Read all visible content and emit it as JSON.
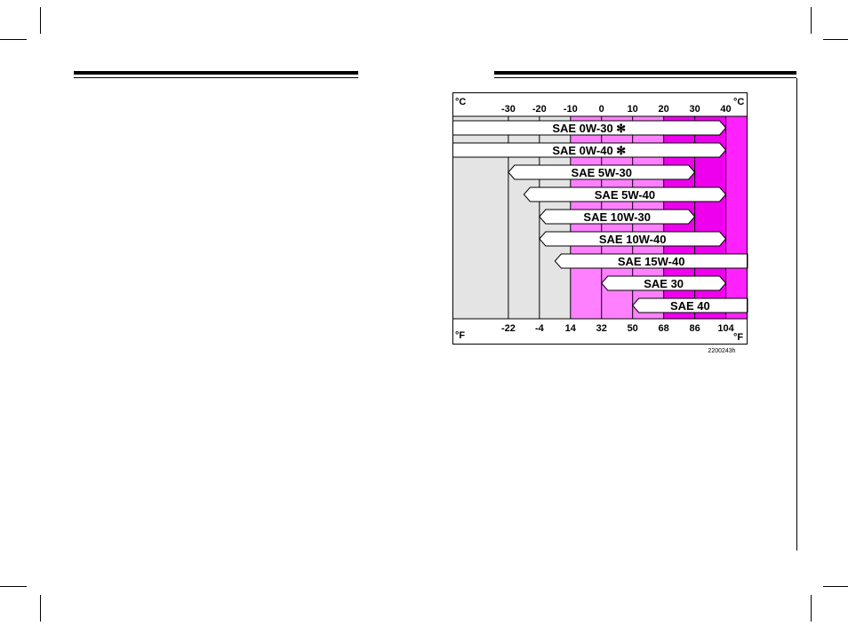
{
  "chart_data": {
    "type": "range-bar",
    "axis_celsius_unit": "°C",
    "axis_fahrenheit_unit": "°F",
    "celsius_ticks": [
      -30,
      -20,
      -10,
      0,
      10,
      20,
      30,
      40
    ],
    "celsius_tick_labels": [
      "-30",
      "-20",
      "-10",
      "0",
      "10",
      "20",
      "30",
      "40"
    ],
    "fahrenheit_tick_labels": [
      "-22",
      "-4",
      "14",
      "32",
      "50",
      "68",
      "86",
      "104"
    ],
    "bands": [
      {
        "from": -48,
        "to": -10,
        "color": "#e4e4e4"
      },
      {
        "from": -10,
        "to": 20,
        "color": "#ff80ff"
      },
      {
        "from": 20,
        "to": 40,
        "color": "#ee00ee"
      },
      {
        "from": 40,
        "to": 47,
        "color": "#ff22ff"
      }
    ],
    "series": [
      {
        "name": "SAE 0W-30",
        "mark": "✻",
        "min": -48,
        "max": 40,
        "open_end": false
      },
      {
        "name": "SAE 0W-40",
        "mark": "✻",
        "min": -48,
        "max": 40,
        "open_end": false
      },
      {
        "name": "SAE 5W-30",
        "mark": "",
        "min": -30,
        "max": 30,
        "open_end": false
      },
      {
        "name": "SAE 5W-40",
        "mark": "",
        "min": -25,
        "max": 40,
        "open_end": false
      },
      {
        "name": "SAE 10W-30",
        "mark": "",
        "min": -20,
        "max": 30,
        "open_end": false
      },
      {
        "name": "SAE 10W-40",
        "mark": "",
        "min": -20,
        "max": 40,
        "open_end": false
      },
      {
        "name": "SAE 15W-40",
        "mark": "",
        "min": -15,
        "max": 47,
        "open_end": true
      },
      {
        "name": "SAE 30",
        "mark": "",
        "min": 0,
        "max": 40,
        "open_end": false
      },
      {
        "name": "SAE 40",
        "mark": "",
        "min": 10,
        "max": 47,
        "open_end": true
      }
    ],
    "figure_code": "2200243h"
  }
}
